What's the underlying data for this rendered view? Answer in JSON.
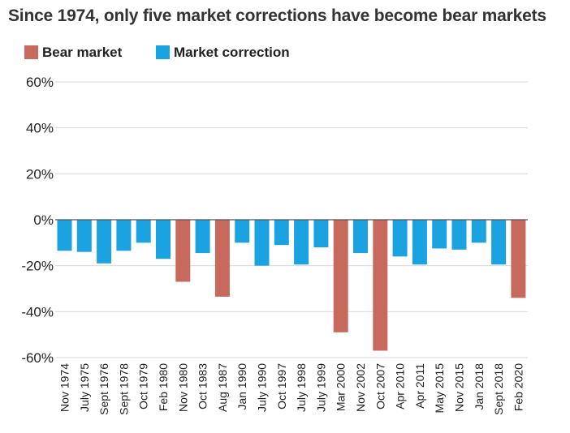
{
  "chart_data": {
    "type": "bar",
    "title": "Since 1974, only five market corrections have become bear markets",
    "xlabel": "",
    "ylabel": "",
    "ylim": [
      -60,
      60
    ],
    "yticks": [
      60,
      40,
      20,
      0,
      -20,
      -40,
      -60
    ],
    "ytick_labels": [
      "60%",
      "40%",
      "20%",
      "0%",
      "-20%",
      "-40%",
      "-60%"
    ],
    "legend": [
      {
        "key": "bear",
        "label": "Bear market",
        "color": "#C8695E"
      },
      {
        "key": "correction",
        "label": "Market correction",
        "color": "#1AA3E0"
      }
    ],
    "categories": [
      "Nov 1974",
      "July 1975",
      "Sept 1976",
      "Sept 1978",
      "Oct 1979",
      "Feb 1980",
      "Nov 1980",
      "Oct 1983",
      "Aug 1987",
      "Jan 1990",
      "July 1990",
      "Oct 1997",
      "July 1998",
      "July 1999",
      "Mar 2000",
      "Nov 2002",
      "Oct 2007",
      "Apr 2010",
      "Apr 2011",
      "May 2015",
      "Nov 2015",
      "Jan 2018",
      "Sept 2018",
      "Feb 2020"
    ],
    "values": [
      -13.5,
      -14,
      -19,
      -13.5,
      -10,
      -17,
      -27,
      -14.5,
      -33.5,
      -10,
      -20,
      -11,
      -19.5,
      -12,
      -49,
      -14.5,
      -57,
      -16,
      -19.5,
      -12.5,
      -13,
      -10,
      -19.5,
      -34
    ],
    "bar_types": [
      "correction",
      "correction",
      "correction",
      "correction",
      "correction",
      "correction",
      "bear",
      "correction",
      "bear",
      "correction",
      "correction",
      "correction",
      "correction",
      "correction",
      "bear",
      "correction",
      "bear",
      "correction",
      "correction",
      "correction",
      "correction",
      "correction",
      "correction",
      "bear"
    ]
  }
}
